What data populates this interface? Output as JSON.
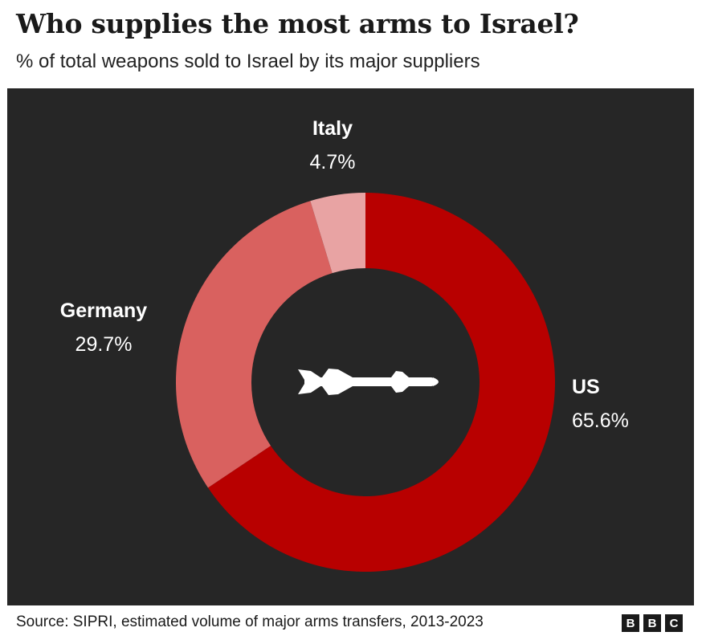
{
  "header": {
    "title": "Who supplies the most arms to Israel?",
    "subtitle": "% of total weapons sold to Israel by its major suppliers"
  },
  "chart_data": {
    "type": "pie",
    "donut": true,
    "title": "Who supplies the most arms to Israel?",
    "subtitle": "% of total weapons sold to Israel by its major suppliers",
    "slices": [
      {
        "label": "US",
        "value": 65.6,
        "display": "65.6%",
        "color": "#b80000"
      },
      {
        "label": "Germany",
        "value": 29.7,
        "display": "29.7%",
        "color": "#d9615f"
      },
      {
        "label": "Italy",
        "value": 4.7,
        "display": "4.7%",
        "color": "#e8a3a3"
      }
    ],
    "center_icon": "missile-icon",
    "background": "#262626"
  },
  "footer": {
    "source": "Source: SIPRI, estimated volume of major arms transfers, 2013-2023",
    "logo_letters": [
      "B",
      "B",
      "C"
    ]
  }
}
